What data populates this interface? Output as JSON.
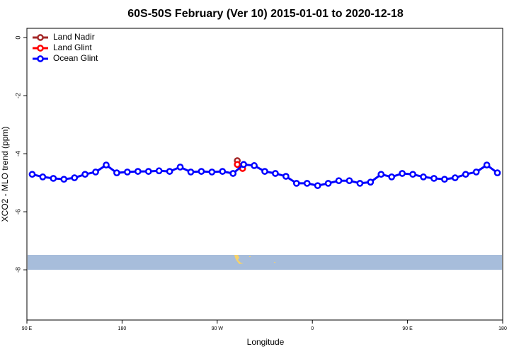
{
  "chart_data": {
    "type": "line",
    "title": "60S-50S February (Ver 10)   2015-01-01 to 2020-12-18",
    "x_label": "Longitude",
    "y_label": "XCO2 - MLO trend (ppm)",
    "xlim": [
      90,
      540
    ],
    "xticks": [
      {
        "value": 90,
        "label": "90 E"
      },
      {
        "value": 180,
        "label": "180"
      },
      {
        "value": 270,
        "label": "90 W"
      },
      {
        "value": 360,
        "label": "0"
      },
      {
        "value": 450,
        "label": "90 E"
      },
      {
        "value": 540,
        "label": "180"
      }
    ],
    "ylim": [
      -9.73,
      0.32
    ],
    "yticks": [
      -8,
      -6,
      -4,
      -2,
      0
    ],
    "legend": "top-left",
    "series": [
      {
        "name": "Land Nadir",
        "color": "#a52a2a",
        "x": [
          289
        ],
        "values": [
          -4.24
        ]
      },
      {
        "name": "Land Glint",
        "color": "#ff0000",
        "x": [
          289,
          294
        ],
        "values": [
          -4.37,
          -4.51
        ]
      },
      {
        "name": "Ocean Glint",
        "color": "#0000ff",
        "x": [
          95,
          105,
          115,
          125,
          135,
          145,
          155,
          165,
          175,
          185,
          195,
          205,
          215,
          225,
          235,
          245,
          255,
          265,
          275,
          285,
          295,
          305,
          315,
          325,
          335,
          345,
          355,
          365,
          375,
          385,
          395,
          405,
          415,
          425,
          435,
          445,
          455,
          465,
          475,
          485,
          495,
          505,
          515,
          525,
          535
        ],
        "values": [
          -4.71,
          -4.8,
          -4.85,
          -4.88,
          -4.83,
          -4.71,
          -4.63,
          -4.39,
          -4.66,
          -4.63,
          -4.61,
          -4.61,
          -4.59,
          -4.61,
          -4.46,
          -4.63,
          -4.61,
          -4.63,
          -4.61,
          -4.68,
          -4.37,
          -4.41,
          -4.61,
          -4.68,
          -4.78,
          -5.02,
          -5.02,
          -5.1,
          -5.02,
          -4.93,
          -4.93,
          -5.02,
          -4.98,
          -4.71,
          -4.8,
          -4.68,
          -4.71,
          -4.8,
          -4.85,
          -4.88,
          -4.83,
          -4.71,
          -4.63,
          -4.39,
          -4.66
        ]
      }
    ]
  }
}
